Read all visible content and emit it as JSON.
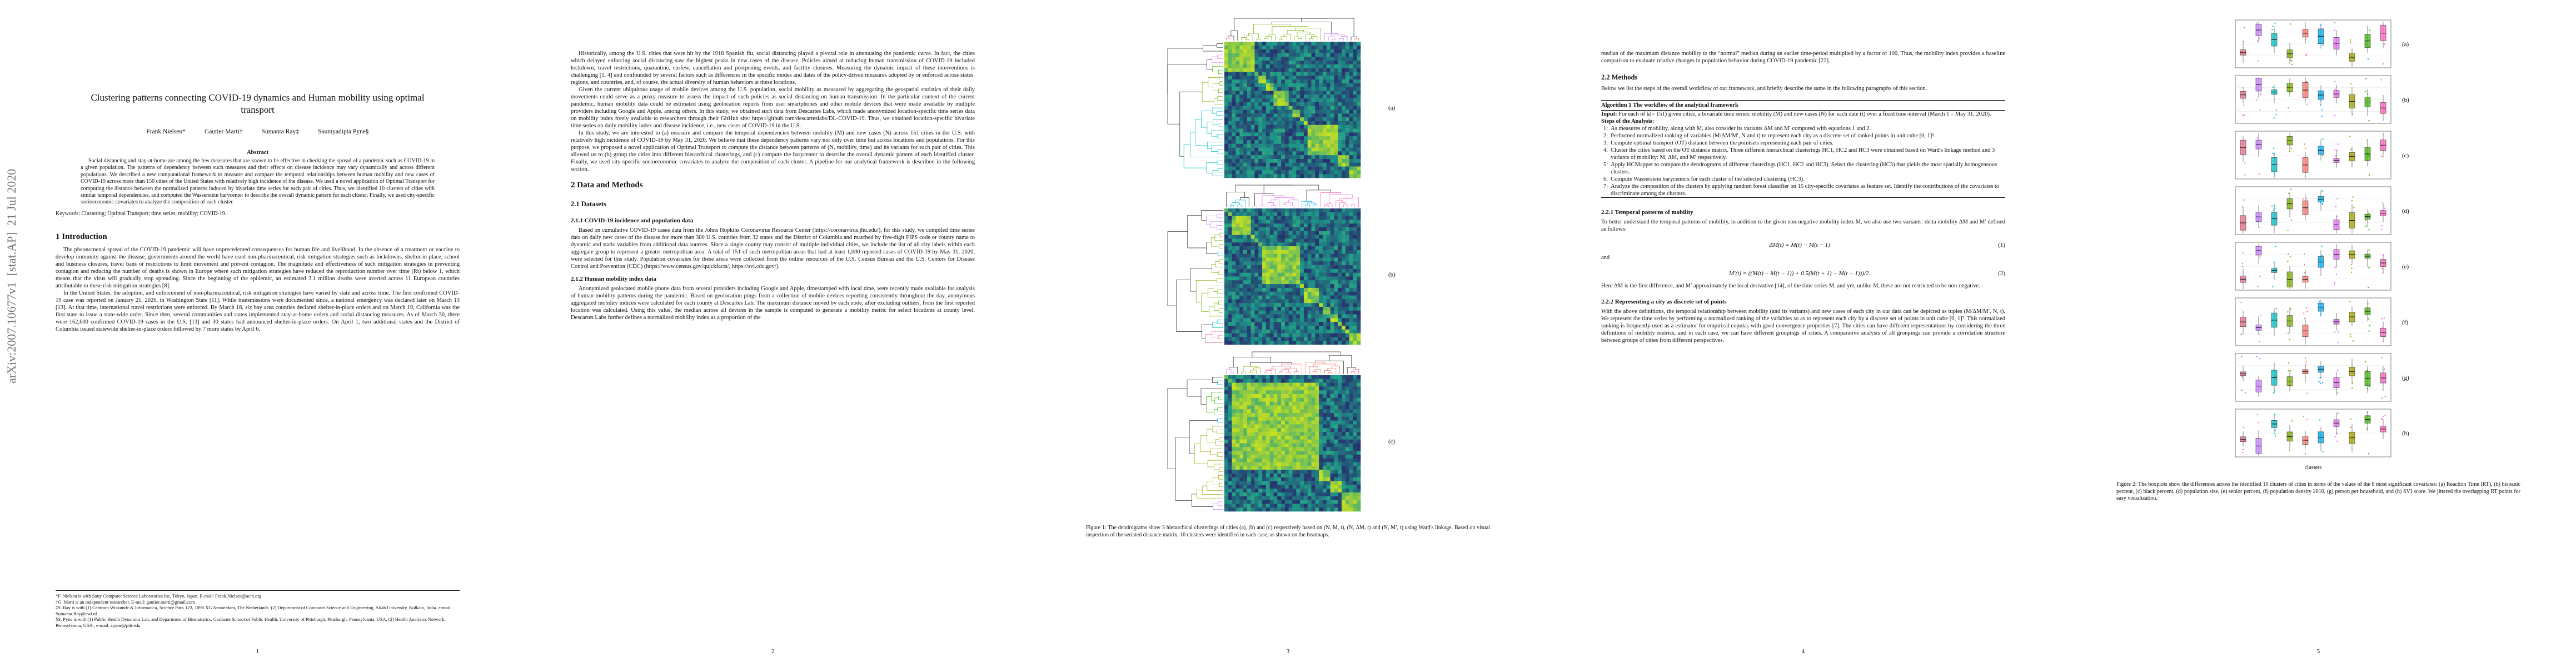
{
  "sidebar": "arXiv:2007.10677v1  [stat.AP]  21 Jul 2020",
  "pages": [
    {
      "number": "1",
      "blocks": [
        {
          "type": "title",
          "text": "Clustering patterns connecting COVID-19 dynamics and Human mobility using optimal transport"
        },
        {
          "type": "authors",
          "items": [
            "Frank Nielsen*",
            "Gautier Marti†",
            "Sumanta Ray‡",
            "Saumyadipta Pyne§"
          ]
        },
        {
          "type": "abstract-heading",
          "text": "Abstract"
        },
        {
          "type": "abstract",
          "text": "Social distancing and stay-at-home are among the few measures that are known to be effective in checking the spread of a pandemic such as COVID-19 in a given population. The patterns of dependency between such measures and their effects on disease incidence may vary dynamically and across different populations. We described a new computational framework to measure and compare the temporal relationships between human mobility and new cases of COVID-19 across more than 150 cities of the United States with relatively high incidence of the disease. We used a novel application of Optimal Transport for computing the distance between the normalized patterns induced by bivariate time series for each pair of cities. Thus, we identified 10 clusters of cities with similar temporal dependencies, and computed the Wasserstein barycenter to describe the overall dynamic pattern for each cluster. Finally, we used city-specific socioeconomic covariates to analyze the composition of each cluster."
        },
        {
          "type": "keywords",
          "text": "Keywords: Clustering; Optimal Transport; time series; mobility; COVID-19."
        },
        {
          "type": "h1",
          "text": "1   Introduction"
        },
        {
          "type": "p",
          "text": "The pheonomenal spread of the COVID-19 pandemic will have unprecedented consequences for human life and livelihood. In the absence of a treatment or vaccine to develop immunity against the disease, governments around the world have used non-pharmaceutical, risk mitigation strategies such as lockdowns, shelter-in-place, school and business closures, travel bans or restrictions to limit movement and prevent contagion. The magnitude and effectiveness of such mitigation strategies in preventing contagion and reducing the number of deaths is shown in Europe where such mitigation strategies have reduced the reproduction number over time (Rt) below 1, which means that the virus will gradually stop spreading. Since the beginning of the epidemic, an estimated 3.1 million deaths were averted across 11 European countries attributable to these risk mitigation strategies [8]."
        },
        {
          "type": "p",
          "text": "In the United States, the adoption, and enforcement of non-pharmaceutical, risk mitigation strategies have varied by state and across time. The first confirmed COVID-19 case was reported on January 21, 2020, in Washington State [11]. While transmissions were documented since, a national emergency was declared later on March 13 [13]. At that time, international travel restrictions were enforced. By March 16, six bay area counties declared shelter-in-place orders and on March 19, California was the first state to issue a state-wide order. Since then, several communities and states implemented stay-at-home orders and social distancing measures. As of March 30, there were 162,600 confirmed COVID-19 cases in the U.S. [13] and 30 states had announced shelter-in-place orders. On April 1, two additional states and the District of Columbia issued statewide shelter-in-place orders followed by 7 more states by April 6."
        },
        {
          "type": "footnotes",
          "items": [
            "*F. Nielsen is with Sony Computer Science Laboratories Inc, Tokyo, Japan. E-mail: Frank.Nielsen@acm.org",
            "†G. Marti is an independent researcher. E-mail: gautier.marti@gmail.com",
            "‡S. Ray is with (1) Centrum Wiskunde & Informatica, Science Park 123, 1098 XG Amsterdam, The Netherlands. (2) Department of Computer Science and Engineering, Aliah University, Kolkata, India. e-mail: Sumanta.Ray@cwi.nl",
            "§S. Pyne is with (1) Public Health Dynamics Lab, and Department of Biostatistics, Graduate School of Public Health, University of Pittsburgh, Pittsburgh, Pennsylvania, USA, (2) Health Analytics Network, Pennsylvania, USA., e-mail: spyne@pitt.edu"
          ]
        }
      ]
    },
    {
      "number": "2",
      "blocks": [
        {
          "type": "p",
          "text": "Historically, among the U.S. cities that were hit by the 1918 Spanish flu, social distancing played a pivotal role in attenuating the pandemic curve. In fact, the cities which delayed enforcing social distancing saw the highest peaks in new cases of the disease. Policies aimed at reducing human transmission of COVID-19 included lockdown, travel restrictions, quarantine, curfew, cancellation and postponing events, and facility closures. Measuring the dynamic impact of these interventions is challenging [1, 4] and confounded by several factors such as differences in the specific modes and dates of the policy-driven measures adopted by or enforced across states, regions, and countries, and, of course, the actual diversity of human behaviors at these locations."
        },
        {
          "type": "p",
          "text": "Given the current ubiquitous usage of mobile devices among the U.S. population, social mobility as measured by aggregating the geospatial statistics of their daily movements could serve as a proxy measure to assess the impact of such policies as social distancing on human transmission. In the particular context of the current pandemic, human mobility data could be estimated using geolocation reports from user smartphones and other mobile devices that were made available by multiple providers including Google and Apple, among others. In this study, we obtained such data from Descartes Labs, which made anonymized location-specific time series data on mobility index freely available to researchers through their GitHub site: https://github.com/descarteslabs/DL-COVID-19. Thus, we obtained location-specific bivariate time series on daily mobility index and disease incidence, i.e., new cases of COVID-19 in the U.S."
        },
        {
          "type": "p",
          "text": "In this study, we are interested to (a) measure and compare the temporal dependencies between mobility (M) and new cases (N) across 151 cities in the U.S. with relatively high incidence of COVID-19 by May 31, 2020. We believe that these dependency patterns vary not only over time but across locations and populations. For this purpose, we proposed a novel application of Optimal Transport to compute the distance between patterns of (N, mobility, time) and its variants for each pair of cities. This allowed us to (b) group the cities into different hierarchical clusterings, and (c) compute the barycenter to describe the overall dynamic pattern of each identified cluster. Finally, we used city-specific socioeconomic covariates to analyze the composition of each cluster. A pipeline for our analytical framework is described in the following section."
        },
        {
          "type": "h1",
          "text": "2   Data and Methods"
        },
        {
          "type": "h2",
          "text": "2.1   Datasets"
        },
        {
          "type": "h3",
          "text": "2.1.1   COVID-19 incidence and population data"
        },
        {
          "type": "p",
          "text": "Based on cumulative COVID-19 cases data from the Johns Hopkins Coronavirus Resource Center (https://coronavirus.jhu.edu/), for this study, we compiled time series data on daily new cases of the disease for more than 300 U.S. counties from 32 states and the District of Columbia and matched by five-digit FIPS code or county name to dynamic and static variables from additional data sources. Since a single county may consist of multiple individual cities, we include the list of all city labels within each aggregate group to represent a greater metropolitan area. A total of 151 of such metropolitan areas that had at least 1,000 reported cases of COVID-19 by May 31, 2020, were selected for this study. Population covariates for these areas were collected from the online resources of the U.S. Census Bureau and the U.S. Centers for Disease Control and Prevention (CDC) (https://www.census.gov/quickfacts/, https://svi.cdc.gov/)."
        },
        {
          "type": "h3",
          "text": "2.1.2   Human mobility index data"
        },
        {
          "type": "p",
          "text": "Anonymized geolocated mobile phone data from several providers including Google and Apple, timestamped with local time, were recently made available for analysis of human mobility patterns during the pandemic. Based on geolocation pings from a collection of mobile devices reporting consistently throughout the day, anonymous aggregated mobility indices were calculated for each county at Descartes Lab. The maximum distance moved by each node, after excluding outliers, from the first reported location was calculated. Using this value, the median across all devices in the sample is computed to generate a mobility metric for select locations at county level. Descartes Labs further defines a normalized mobility index as a proportion of the"
        }
      ]
    },
    {
      "number": "3",
      "blocks": [
        {
          "type": "figure-dendro",
          "panels": [
            "(a)",
            "(b)",
            "(c)"
          ],
          "caption": "Figure 1: The dendrograms show 3 hierarchical clusterings of cities (a), (b) and (c) respectively based on (N, M, t), (N, ΔM, t) and (N, M′, t) using Ward's linkage. Based on visual inspection of the seriated distance matrix, 10 clusters were identified in each case, as shown on the heatmaps."
        }
      ]
    },
    {
      "number": "4",
      "blocks": [
        {
          "type": "p-noindent",
          "text": "median of the maximum distance mobility to the “normal” median during an earlier time-period multiplied by a factor of 100. Thus, the mobility index provides a baseline comparison to evaluate relative changes in population behavior during COVID-19 pandemic [22]."
        },
        {
          "type": "h2",
          "text": "2.2   Methods"
        },
        {
          "type": "p-noindent",
          "text": "Below we list the steps of the overall workflow of our framework, and briefly describe the same in the following paragraphs of this section."
        },
        {
          "type": "algorithm",
          "title": "Algorithm 1 The workflow of the analytical framework",
          "input_label": "Input:",
          "input": "For each of k(= 151) given cities, a bivariate time series: mobility (M) and new cases (N) for each date (t) over a fixed time-interval (March 1 – May 31, 2020).",
          "steps_heading": "Steps of the Analysis:",
          "steps": [
            {
              "label": "1:",
              "text": "As measures of mobility, along with M, also consider its variants ΔM and M′ computed with equations 1 and 2."
            },
            {
              "label": "2:",
              "text": "Performed normalized ranking of variables (M/ΔM/M′, N and t) to represent each city as a discrete set of ranked points in unit cube [0, 1]³."
            },
            {
              "label": "3:",
              "text": "Compute optimal transport (OT) distance between the pointsets representing each pair of cities."
            },
            {
              "label": "4:",
              "text": "Cluster the cities based on the OT distance matrix. Three different hierarchical clusterings HC1, HC2 and HC3 were obtained based on Ward's linkage method and 3 variants of mobility: M, ΔM, and M′ respectively."
            },
            {
              "label": "5:",
              "text": "Apply HCMapper to compare the dendrograms of different clusterings (HC1, HC2 and HC3). Select the clustering (HC3) that yields the most spatially homogeneous clusters."
            },
            {
              "label": "6:",
              "text": "Compute Wasserstein barycenters for each cluster of the selected clustering (HC3)."
            },
            {
              "label": "7:",
              "text": "Analyze the composition of the clusters by applying random forest classifier on 15 city-specific covariates as feature set. Identify the contributions of the covariates to discriminate among the clusters."
            }
          ]
        },
        {
          "type": "h3",
          "text": "2.2.1   Temporal patterns of mobility"
        },
        {
          "type": "p-noindent",
          "text": "To better understand the temporal patterns of mobility, in addition to the given non-negative mobility index M, we also use two variants: delta mobility ΔM and M′ defined as follows:"
        },
        {
          "type": "equation",
          "text": "ΔM(t) = M(t) − M(t − 1)",
          "number": "(1)"
        },
        {
          "type": "p-noindent",
          "text": "and"
        },
        {
          "type": "equation",
          "text": "M′(t) = ((M(t) − M(t − 1)) + 0.5(M(t + 1) − M(t − 1)))/2.",
          "number": "(2)"
        },
        {
          "type": "p-noindent",
          "text": "Here ΔM is the first difference, and M′ approximately the local derivative [14], of the time series M, and yet, unlike M, these are not restricted to be non-negative."
        },
        {
          "type": "h3",
          "text": "2.2.2   Representing a city as discrete set of points"
        },
        {
          "type": "p-noindent",
          "text": "With the above definitions, the temporal relationship between mobility (and its variants) and new cases of each city in our data can be depicted as tuples (M/ΔM/M′, N, t). We represent the time series by performing a normalized ranking of the variables so as to represent each city by a discrete set of points in unit cube [0, 1]³. This normalized ranking is frequently used as a estimator for empirical copulas with good convergence properties [7]. The cities can have different representations by considering the three definitions of mobility metrics, and in each case, we can have different groupings of cities. A comparative analysis of all groupings can provide a correlation structure between groups of cities from different perspectives."
        }
      ]
    },
    {
      "number": "5",
      "blocks": [
        {
          "type": "figure-box",
          "panels": [
            "(a)",
            "(b)",
            "(c)",
            "(d)",
            "(e)",
            "(f)",
            "(g)",
            "(h)"
          ],
          "xlabel": "clusters",
          "caption": "Figure 2: The boxplots show the differences across the identified 10 clusters of cities in terms of the values of the 8 most significant covariates: (a) Reaction Time (RT), (b) hispanic percent, (c) black percent, (d) population size, (e) senior percent, (f) population density 2010, (g) person per household, and (h) SVI score. We jittered the overlapping RT points for easy visualization."
        }
      ]
    }
  ]
}
